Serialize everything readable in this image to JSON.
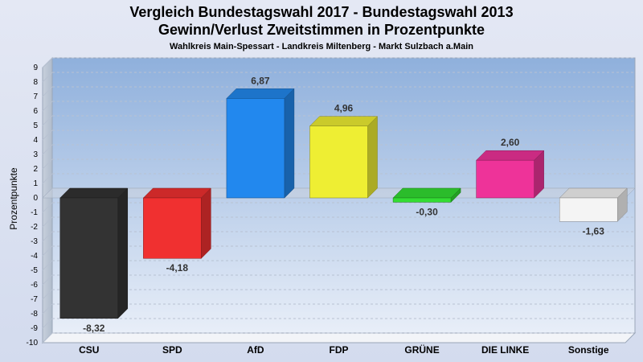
{
  "chart_data": {
    "type": "bar",
    "title": "Vergleich Bundestagswahl 2017 - Bundestagswahl 2013",
    "title_line2": "Gewinn/Verlust Zweitstimmen in Prozentpunkte",
    "subtitle": "Wahlkreis Main-Spessart - Landkreis Miltenberg - Markt Sulzbach a.Main",
    "ylabel": "Prozentpunkte",
    "xlabel": "",
    "ylim": [
      -10,
      9
    ],
    "yticks": [
      9,
      8,
      7,
      6,
      5,
      4,
      3,
      2,
      1,
      0,
      -1,
      -2,
      -3,
      -4,
      -5,
      -6,
      -7,
      -8,
      -9,
      -10
    ],
    "grid": true,
    "categories": [
      "CSU",
      "SPD",
      "AfD",
      "FDP",
      "GRÜNE",
      "DIE LINKE",
      "Sonstige"
    ],
    "values": [
      -8.32,
      -4.18,
      6.87,
      4.96,
      -0.3,
      2.6,
      -1.63
    ],
    "value_labels": [
      "-8,32",
      "-4,18",
      "6,87",
      "4,96",
      "-0,30",
      "2,60",
      "-1,63"
    ],
    "colors": [
      "#333333",
      "#f03030",
      "#2288ee",
      "#eeee33",
      "#33dd33",
      "#ee3399",
      "#f4f4f4"
    ]
  }
}
